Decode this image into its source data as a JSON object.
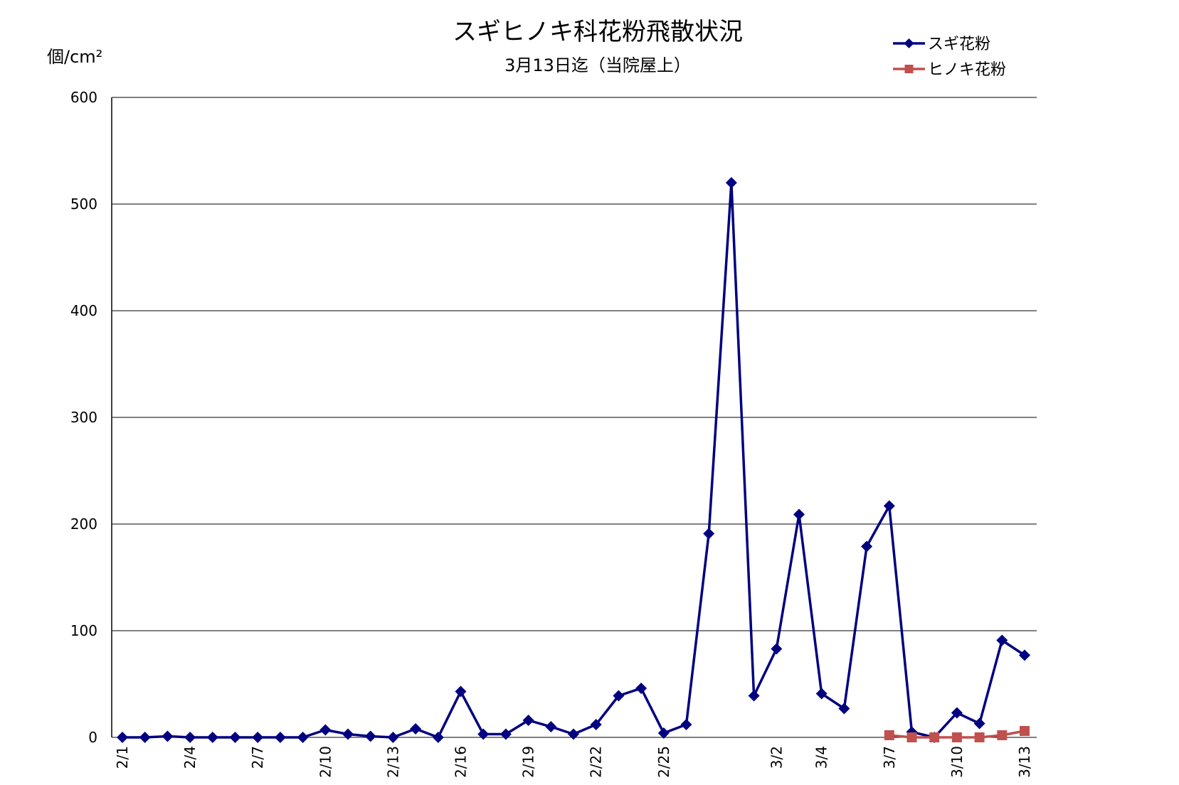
{
  "chart_data": {
    "type": "line",
    "title": "スギヒノキ科花粉飛散状況",
    "subtitle": "3月13日迄（当院屋上）",
    "ylabel": "個/cm²",
    "ylim": [
      0,
      600
    ],
    "yticks": [
      "0",
      "100",
      "200",
      "300",
      "400",
      "500",
      "600"
    ],
    "grid": true,
    "legend_position": "top-right",
    "categories": [
      "2/1",
      "2/2",
      "2/3",
      "2/4",
      "2/5",
      "2/6",
      "2/7",
      "2/8",
      "2/9",
      "2/10",
      "2/11",
      "2/12",
      "2/13",
      "2/14",
      "2/15",
      "2/16",
      "2/17",
      "2/18",
      "2/19",
      "2/20",
      "2/21",
      "2/22",
      "2/23",
      "2/24",
      "2/25",
      "2/26",
      "2/27",
      "2/28",
      "3/1",
      "3/2",
      "3/3",
      "3/4",
      "3/5",
      "3/6",
      "3/7",
      "3/8",
      "3/9",
      "3/10",
      "3/11",
      "3/12",
      "3/13"
    ],
    "xtick_labels": [
      "2/1",
      "",
      "",
      "2/4",
      "",
      "",
      "2/7",
      "",
      "",
      "2/10",
      "",
      "",
      "2/13",
      "",
      "",
      "2/16",
      "",
      "",
      "2/19",
      "",
      "",
      "2/22",
      "",
      "",
      "2/25",
      "",
      "",
      "",
      "",
      "3/2",
      "",
      "3/4",
      "",
      "",
      "3/7",
      "",
      "",
      "3/10",
      "",
      "",
      "3/13"
    ],
    "series": [
      {
        "name": "スギ花粉",
        "color": "#000080",
        "marker": "diamond",
        "values": [
          0,
          0,
          1,
          0,
          0,
          0,
          0,
          0,
          0,
          7,
          3,
          1,
          0,
          8,
          0,
          43,
          3,
          3,
          16,
          10,
          3,
          12,
          39,
          46,
          4,
          12,
          191,
          520,
          39,
          83,
          209,
          41,
          27,
          179,
          217,
          5,
          0,
          23,
          13,
          91,
          77
        ]
      },
      {
        "name": "ヒノキ花粉",
        "color": "#c0504d",
        "marker": "square",
        "values": [
          null,
          null,
          null,
          null,
          null,
          null,
          null,
          null,
          null,
          null,
          null,
          null,
          null,
          null,
          null,
          null,
          null,
          null,
          null,
          null,
          null,
          null,
          null,
          null,
          null,
          null,
          null,
          null,
          null,
          null,
          null,
          null,
          null,
          null,
          2,
          0,
          0,
          0,
          0,
          2,
          6
        ]
      }
    ]
  }
}
